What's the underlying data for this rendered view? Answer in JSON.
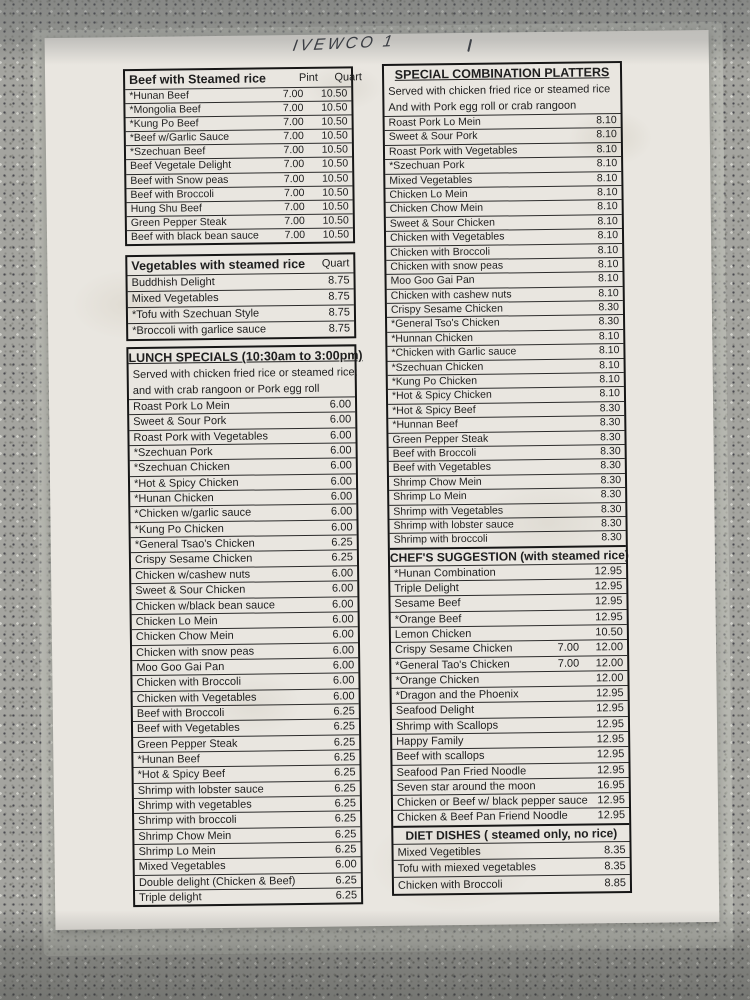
{
  "photo": {
    "handwritten_note": "IVEWCO 1"
  },
  "left_column": {
    "beef_table": {
      "title": "Beef with Steamed rice",
      "col_pint": "Pint",
      "col_quart": "Quart",
      "rows": [
        {
          "name": "*Hunan Beef",
          "pint": "7.00",
          "price": "10.50"
        },
        {
          "name": "*Mongolia Beef",
          "pint": "7.00",
          "price": "10.50"
        },
        {
          "name": "*Kung Po Beef",
          "pint": "7.00",
          "price": "10.50"
        },
        {
          "name": "*Beef w/Garlic Sauce",
          "pint": "7.00",
          "price": "10.50"
        },
        {
          "name": "*Szechuan Beef",
          "pint": "7.00",
          "price": "10.50"
        },
        {
          "name": "Beef Vegetale Delight",
          "pint": "7.00",
          "price": "10.50"
        },
        {
          "name": "Beef with Snow peas",
          "pint": "7.00",
          "price": "10.50"
        },
        {
          "name": "Beef with Broccoli",
          "pint": "7.00",
          "price": "10.50"
        },
        {
          "name": "Hung Shu Beef",
          "pint": "7.00",
          "price": "10.50"
        },
        {
          "name": "Green Pepper Steak",
          "pint": "7.00",
          "price": "10.50"
        },
        {
          "name": "Beef with black bean sauce",
          "pint": "7.00",
          "price": "10.50"
        }
      ]
    },
    "veg_table": {
      "title": "Vegetables with steamed rice",
      "col_quart": "Quart",
      "rows": [
        {
          "name": "Buddhish Delight",
          "price": "8.75"
        },
        {
          "name": "Mixed Vegetables",
          "price": "8.75"
        },
        {
          "name": "*Tofu with Szechuan Style",
          "price": "8.75"
        },
        {
          "name": "*Broccoli with garlice sauce",
          "price": "8.75"
        }
      ]
    },
    "lunch_table": {
      "title": "LUNCH SPECIALS  (10:30am to 3:00pm)",
      "desc1": "Served with  chicken fried rice or steamed rice;",
      "desc2": "and with crab rangoon or Pork egg roll",
      "rows": [
        {
          "name": "Roast Pork Lo Mein",
          "price": "6.00"
        },
        {
          "name": "Sweet & Sour Pork",
          "price": "6.00"
        },
        {
          "name": "Roast Pork with Vegetables",
          "price": "6.00"
        },
        {
          "name": "*Szechuan Pork",
          "price": "6.00"
        },
        {
          "name": "*Szechuan Chicken",
          "price": "6.00"
        },
        {
          "name": "*Hot & Spicy Chicken",
          "price": "6.00"
        },
        {
          "name": "*Hunan Chicken",
          "price": "6.00"
        },
        {
          "name": "*Chicken w/garlic sauce",
          "price": "6.00"
        },
        {
          "name": "*Kung Po Chicken",
          "price": "6.00"
        },
        {
          "name": "*General Tsao's Chicken",
          "price": "6.25"
        },
        {
          "name": "Crispy Sesame Chicken",
          "price": "6.25"
        },
        {
          "name": "Chicken w/cashew nuts",
          "price": "6.00"
        },
        {
          "name": "Sweet & Sour Chicken",
          "price": "6.00"
        },
        {
          "name": "Chicken w/black bean sauce",
          "price": "6.00"
        },
        {
          "name": "Chicken Lo Mein",
          "price": "6.00"
        },
        {
          "name": "Chicken Chow Mein",
          "price": "6.00"
        },
        {
          "name": "Chicken with snow peas",
          "price": "6.00"
        },
        {
          "name": "Moo Goo Gai Pan",
          "price": "6.00"
        },
        {
          "name": "Chicken with Broccoli",
          "price": "6.00"
        },
        {
          "name": "Chicken with Vegetables",
          "price": "6.00"
        },
        {
          "name": "Beef with Broccoli",
          "price": "6.25"
        },
        {
          "name": "Beef with Vegetables",
          "price": "6.25"
        },
        {
          "name": "Green Pepper Steak",
          "price": "6.25"
        },
        {
          "name": "*Hunan Beef",
          "price": "6.25"
        },
        {
          "name": "*Hot & Spicy Beef",
          "price": "6.25"
        },
        {
          "name": "Shrimp with lobster sauce",
          "price": "6.25"
        },
        {
          "name": "Shrimp with vegetables",
          "price": "6.25"
        },
        {
          "name": "Shrimp with broccoli",
          "price": "6.25"
        },
        {
          "name": "Shrimp Chow Mein",
          "price": "6.25"
        },
        {
          "name": "Shrimp Lo Mein",
          "price": "6.25"
        },
        {
          "name": "Mixed Vegetables",
          "price": "6.00"
        },
        {
          "name": "Double delight (Chicken & Beef)",
          "price": "6.25"
        },
        {
          "name": "Triple delight",
          "price": "6.25"
        }
      ]
    }
  },
  "right_column": {
    "combo_table": {
      "title": "SPECIAL COMBINATION PLATTERS",
      "desc1": "Served with chicken fried rice or steamed rice",
      "desc2": "And with  Pork egg roll or crab rangoon",
      "rows": [
        {
          "name": "Roast Pork Lo Mein",
          "price": "8.10"
        },
        {
          "name": "Sweet & Sour Pork",
          "price": "8.10"
        },
        {
          "name": "Roast Pork with Vegetables",
          "price": "8.10"
        },
        {
          "name": "*Szechuan Pork",
          "price": "8.10"
        },
        {
          "name": "Mixed Vegetables",
          "price": "8.10"
        },
        {
          "name": "Chicken Lo Mein",
          "price": "8.10"
        },
        {
          "name": "Chicken Chow Mein",
          "price": "8.10"
        },
        {
          "name": "Sweet & Sour Chicken",
          "price": "8.10"
        },
        {
          "name": "Chicken with Vegetables",
          "price": "8.10"
        },
        {
          "name": "Chicken with Broccoli",
          "price": "8.10"
        },
        {
          "name": "Chicken with snow peas",
          "price": "8.10"
        },
        {
          "name": "Moo Goo Gai Pan",
          "price": "8.10"
        },
        {
          "name": "Chicken with cashew nuts",
          "price": "8.10"
        },
        {
          "name": "Crispy Sesame Chicken",
          "price": "8.30"
        },
        {
          "name": "*General Tso's Chicken",
          "price": "8.30"
        },
        {
          "name": "*Hunnan Chicken",
          "price": "8.10"
        },
        {
          "name": "*Chicken with Garlic sauce",
          "price": "8.10"
        },
        {
          "name": "*Szechuan Chicken",
          "price": "8.10"
        },
        {
          "name": "*Kung Po Chicken",
          "price": "8.10"
        },
        {
          "name": "*Hot & Spicy Chicken",
          "price": "8.10"
        },
        {
          "name": "*Hot & Spicy Beef",
          "price": "8.30"
        },
        {
          "name": "*Hunnan Beef",
          "price": "8.30"
        },
        {
          "name": "Green Pepper Steak",
          "price": "8.30"
        },
        {
          "name": "Beef with Broccoli",
          "price": "8.30"
        },
        {
          "name": "Beef with Vegetables",
          "price": "8.30"
        },
        {
          "name": "Shrimp Chow Mein",
          "price": "8.30"
        },
        {
          "name": "Shrimp Lo Mein",
          "price": "8.30"
        },
        {
          "name": "Shrimp with Vegetables",
          "price": "8.30"
        },
        {
          "name": "Shrimp with lobster sauce",
          "price": "8.30"
        },
        {
          "name": "Shrimp with broccoli",
          "price": "8.30"
        }
      ]
    },
    "chef_table": {
      "title": "CHEF'S SUGGESTION  (with steamed rice)",
      "rows": [
        {
          "name": "*Hunan Combination",
          "price": "12.95"
        },
        {
          "name": "Triple Delight",
          "price": "12.95"
        },
        {
          "name": "Sesame Beef",
          "price": "12.95"
        },
        {
          "name": "*Orange Beef",
          "price": "12.95"
        },
        {
          "name": "Lemon Chicken",
          "price": "10.50"
        },
        {
          "name": "Crispy Sesame Chicken",
          "pint": "7.00",
          "price": "12.00"
        },
        {
          "name": "*General Tao's Chicken",
          "pint": "7.00",
          "price": "12.00"
        },
        {
          "name": "*Orange Chicken",
          "price": "12.00"
        },
        {
          "name": "*Dragon and the  Phoenix",
          "price": "12.95"
        },
        {
          "name": "Seafood Delight",
          "price": "12.95"
        },
        {
          "name": "Shrimp with Scallops",
          "price": "12.95"
        },
        {
          "name": "Happy Family",
          "price": "12.95"
        },
        {
          "name": "Beef with scallops",
          "price": "12.95"
        },
        {
          "name": "Seafood Pan Fried Noodle",
          "price": "12.95"
        },
        {
          "name": "Seven star around the moon",
          "price": "16.95"
        },
        {
          "name": "Chicken or Beef w/ black pepper sauce",
          "price": "12.95"
        },
        {
          "name": "Chicken & Beef Pan Friend Noodle",
          "price": "12.95"
        }
      ]
    },
    "diet_table": {
      "title": "DIET DISHES ( steamed only, no rice)",
      "rows": [
        {
          "name": "Mixed Vegetibles",
          "price": "8.35"
        },
        {
          "name": "Tofu with miexed vegetables",
          "price": "8.35"
        },
        {
          "name": "Chicken with Broccoli",
          "price": "8.85"
        }
      ]
    }
  }
}
